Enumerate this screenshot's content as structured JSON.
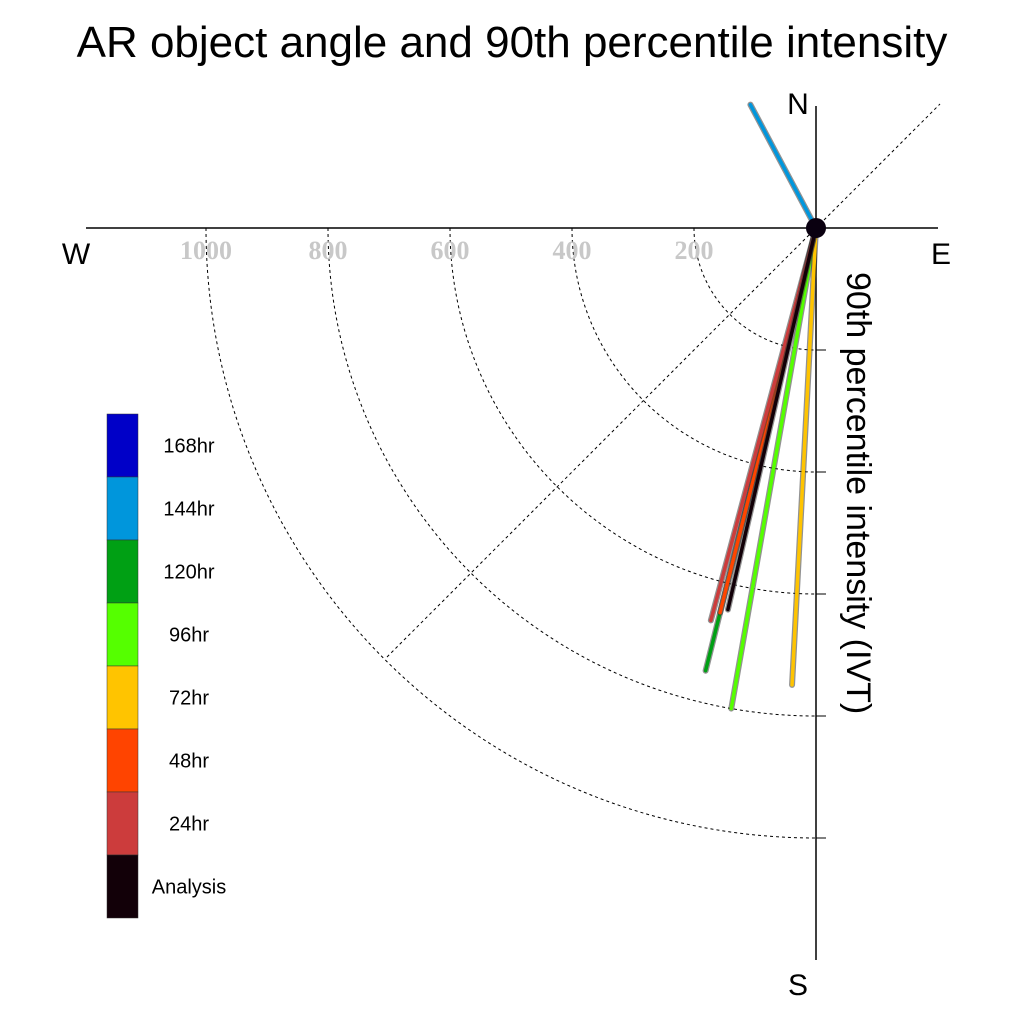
{
  "chart_data": {
    "type": "polar-line",
    "title": "AR object angle and 90th percentile intensity",
    "radial_label": "90th percentile intensity (IVT)",
    "compass": {
      "north": "N",
      "south": "S",
      "east": "E",
      "west": "W"
    },
    "rings": [
      200,
      400,
      600,
      800,
      1000
    ],
    "ring_labels": [
      "200",
      "400",
      "600",
      "800",
      "1000"
    ],
    "series": [
      {
        "name": "Analysis",
        "color": "#120008",
        "angle_deg": 193,
        "value": 642
      },
      {
        "name": "24hr",
        "color": "#cc3c3c",
        "angle_deg": 195,
        "value": 666
      },
      {
        "name": "48hr",
        "color": "#ff4400",
        "angle_deg": 194,
        "value": 650
      },
      {
        "name": "72hr",
        "color": "#ffc400",
        "angle_deg": 183,
        "value": 750
      },
      {
        "name": "96hr",
        "color": "#55ff00",
        "angle_deg": 190,
        "value": 800
      },
      {
        "name": "120hr",
        "color": "#00a014",
        "angle_deg": 194,
        "value": 748
      },
      {
        "name": "144hr",
        "color": "#0096dc",
        "angle_deg": 332,
        "value": 229
      },
      {
        "name": "168hr",
        "color": "#0000c8",
        "angle_deg": null,
        "value": null
      }
    ],
    "legend": {
      "placement": "left",
      "entries": [
        "168hr",
        "144hr",
        "120hr",
        "96hr",
        "72hr",
        "48hr",
        "24hr",
        "Analysis"
      ]
    },
    "grid": true
  }
}
